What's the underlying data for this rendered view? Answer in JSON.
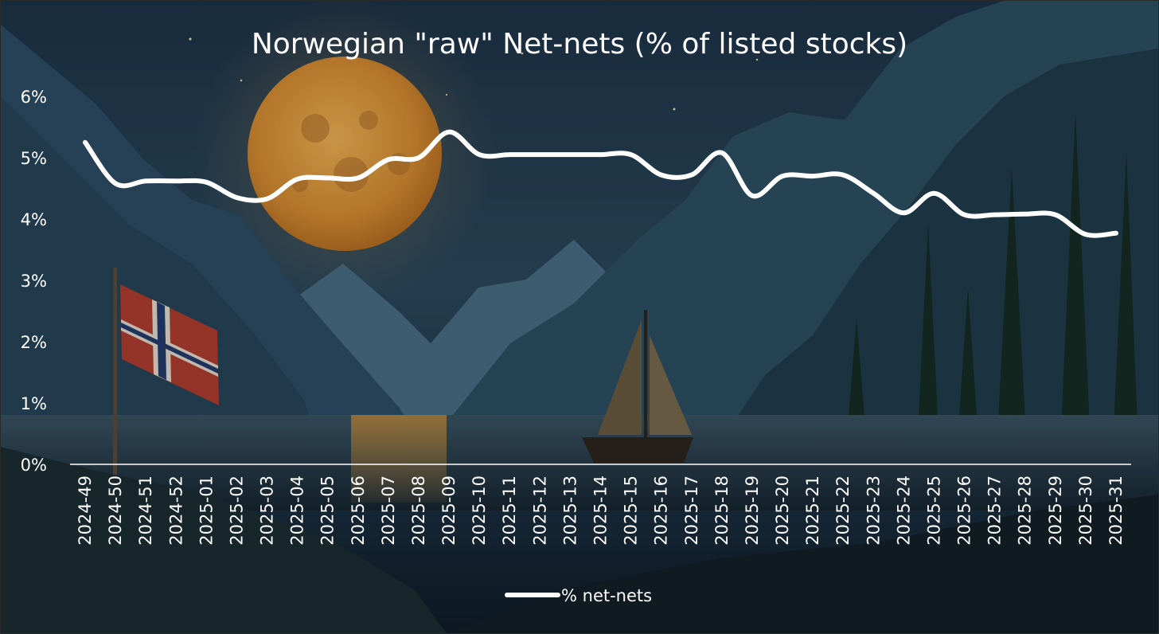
{
  "chart_data": {
    "type": "line",
    "title": "Norwegian \"raw\" Net-nets (% of listed stocks)",
    "x": [
      "2024-49",
      "2024-50",
      "2024-51",
      "2024-52",
      "2025-01",
      "2025-02",
      "2025-03",
      "2025-04",
      "2025-05",
      "2025-06",
      "2025-07",
      "2025-08",
      "2025-09",
      "2025-10",
      "2025-11",
      "2025-12",
      "2025-13",
      "2025-14",
      "2025-15",
      "2025-16",
      "2025-17",
      "2025-18",
      "2025-19",
      "2025-20",
      "2025-21",
      "2025-22",
      "2025-23",
      "2025-24",
      "2025-25",
      "2025-26",
      "2025-27",
      "2025-28",
      "2025-29",
      "2025-30",
      "2025-31"
    ],
    "series": [
      {
        "name": "% net-nets",
        "values": [
          5.25,
          4.58,
          4.62,
          4.62,
          4.6,
          4.35,
          4.33,
          4.65,
          4.67,
          4.67,
          4.97,
          5.0,
          5.42,
          5.05,
          5.05,
          5.05,
          5.05,
          5.05,
          5.05,
          4.72,
          4.72,
          5.08,
          4.38,
          4.7,
          4.7,
          4.72,
          4.42,
          4.1,
          4.42,
          4.07,
          4.07,
          4.08,
          4.07,
          3.75,
          3.77
        ],
        "color": "#ffffff"
      }
    ],
    "yticks": [
      "0%",
      "1%",
      "2%",
      "3%",
      "4%",
      "5%",
      "6%"
    ],
    "ylim": [
      0,
      6
    ],
    "grid": false,
    "legend": "bottom",
    "background": "night fjord painting with full moon, Norwegian flag and sailboat"
  }
}
